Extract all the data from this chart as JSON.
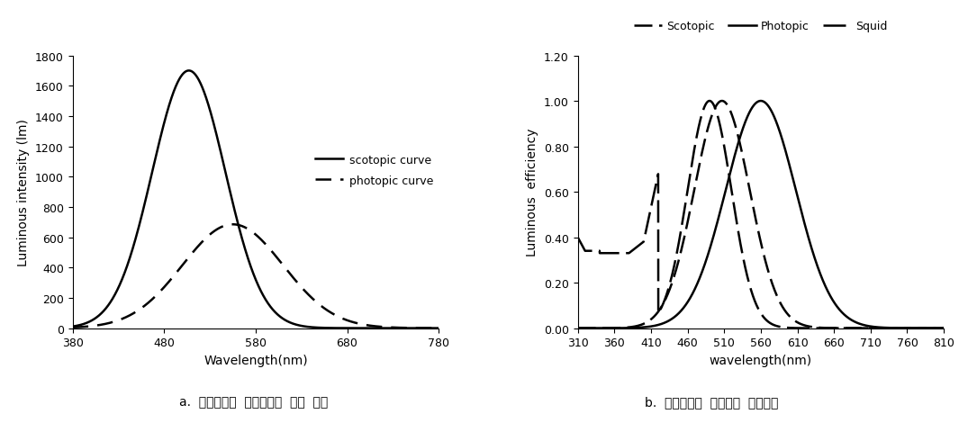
{
  "chart1": {
    "ylabel": "Luminous intensity (lm)",
    "xlabel": "Wavelength(nm)",
    "xlim": [
      380,
      780
    ],
    "xticks": [
      380,
      480,
      580,
      680,
      780
    ],
    "ylim": [
      0,
      1800
    ],
    "yticks": [
      0,
      200,
      400,
      600,
      800,
      1000,
      1200,
      1400,
      1600,
      1800
    ],
    "scotopic_peak": 507,
    "scotopic_amplitude": 1700,
    "scotopic_sigma": 40,
    "photopic_peak": 555,
    "photopic_amplitude": 685,
    "photopic_sigma": 55,
    "legend_scotopic": "scotopic curve",
    "legend_photopic": "photopic curve",
    "caption": "a.  명시감도와  암시감도에  따른  광속"
  },
  "chart2": {
    "ylabel": "Luminous  efficiency",
    "xlabel": "wavelength(nm)",
    "xlim": [
      310,
      810
    ],
    "xticks": [
      310,
      360,
      410,
      460,
      510,
      560,
      610,
      660,
      710,
      760,
      810
    ],
    "ylim": [
      0.0,
      1.2
    ],
    "yticks": [
      0.0,
      0.2,
      0.4,
      0.6,
      0.8,
      1.0,
      1.2
    ],
    "scotopic_peak": 507,
    "scotopic_sigma": 38,
    "photopic_peak": 560,
    "photopic_sigma": 48,
    "squid_peak": 490,
    "squid_sigma": 30,
    "legend_scotopic": "Scotopic",
    "legend_photopic": "Photopic",
    "legend_squid": "Squid",
    "caption": "b.  살오징어의  흡광도와  비시감도"
  },
  "background_color": "#ffffff",
  "line_color": "#000000"
}
